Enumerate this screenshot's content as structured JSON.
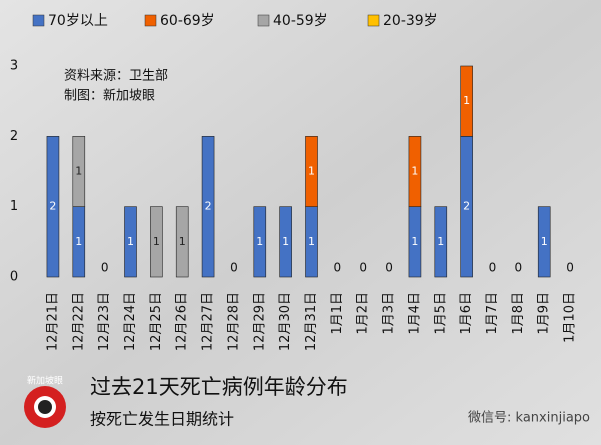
{
  "chart_data": {
    "type": "bar",
    "stacked": true,
    "title": "过去21天死亡病例年龄分布",
    "subtitle": "按死亡发生日期统计",
    "annotations": [
      "资料来源：卫生部",
      "制图：新加坡眼"
    ],
    "logo": "新加坡眼",
    "watermark": "微信号: kanxinjiapo",
    "categories": [
      "12月21日",
      "12月22日",
      "12月23日",
      "12月24日",
      "12月25日",
      "12月26日",
      "12月27日",
      "12月28日",
      "12月29日",
      "12月30日",
      "12月31日",
      "1月1日",
      "1月2日",
      "1月3日",
      "1月4日",
      "1月5日",
      "1月6日",
      "1月7日",
      "1月8日",
      "1月9日",
      "1月10日"
    ],
    "series": [
      {
        "name": "70岁以上",
        "color": "#4472c4",
        "values": [
          2,
          1,
          0,
          1,
          0,
          0,
          2,
          0,
          1,
          1,
          1,
          0,
          0,
          0,
          1,
          1,
          2,
          0,
          0,
          1,
          0
        ]
      },
      {
        "name": "60-69岁",
        "color": "#f06000",
        "values": [
          0,
          0,
          0,
          0,
          0,
          0,
          0,
          0,
          0,
          0,
          1,
          0,
          0,
          0,
          1,
          0,
          1,
          0,
          0,
          0,
          0
        ]
      },
      {
        "name": "40-59岁",
        "color": "#a6a6a6",
        "values": [
          0,
          1,
          0,
          0,
          1,
          1,
          0,
          0,
          0,
          0,
          0,
          0,
          0,
          0,
          0,
          0,
          0,
          0,
          0,
          0,
          0
        ]
      },
      {
        "name": "20-39岁",
        "color": "#ffc000",
        "values": [
          0,
          0,
          0,
          0,
          0,
          0,
          0,
          0,
          0,
          0,
          0,
          0,
          0,
          0,
          0,
          0,
          0,
          0,
          0,
          0,
          0
        ]
      }
    ],
    "ylim": [
      0,
      3
    ],
    "yticks": [
      0,
      1,
      2,
      3
    ],
    "grid": false,
    "legend": "top"
  }
}
